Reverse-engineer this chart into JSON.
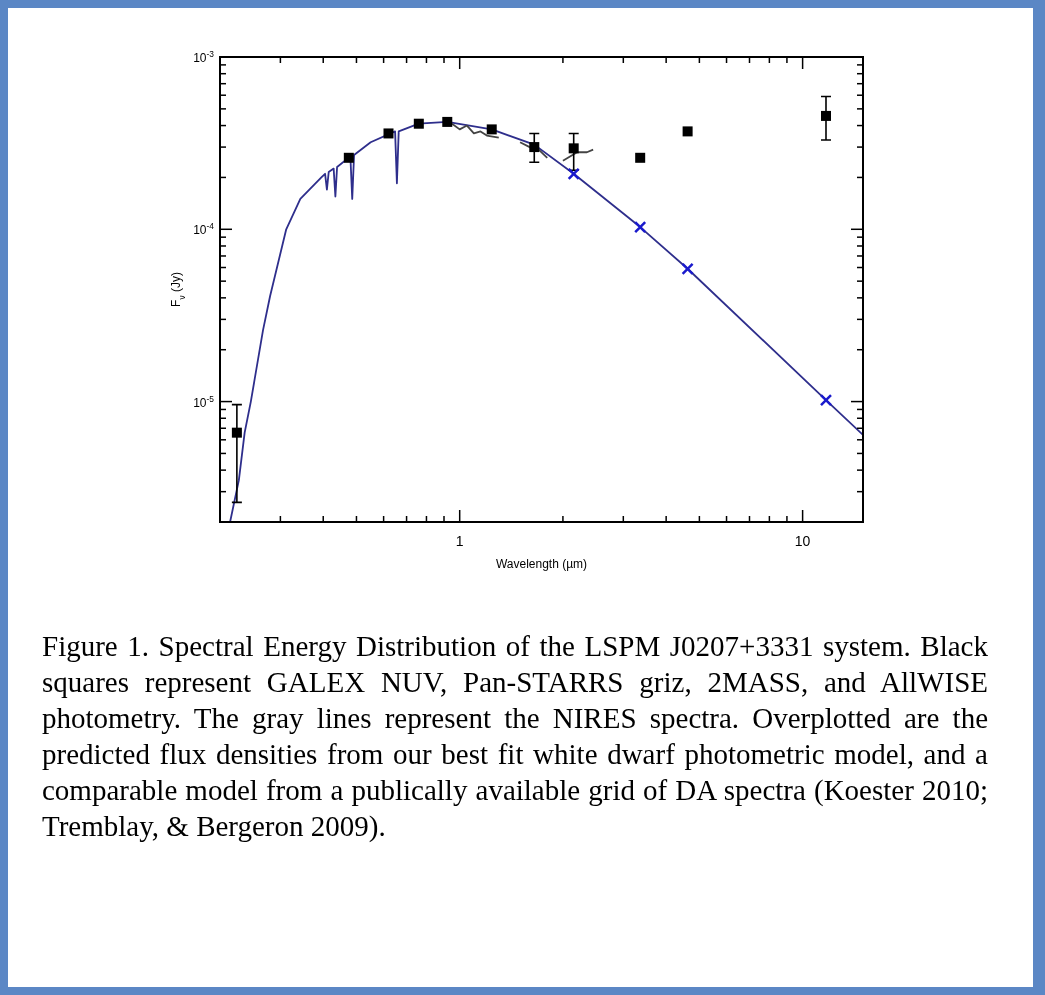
{
  "chart_data": {
    "type": "line",
    "xlabel": "Wavelength (µm)",
    "ylabel": "F$_{ν}$ (Jy)",
    "log": "xy",
    "grid": false,
    "xlim": [
      0.2,
      15
    ],
    "ylim": [
      2e-06,
      0.001
    ],
    "xticks": [
      {
        "value": 0.2,
        "label": null
      },
      {
        "value": 0.3,
        "label": null
      },
      {
        "value": 0.4,
        "label": null
      },
      {
        "value": 0.5,
        "label": null
      },
      {
        "value": 0.6,
        "label": null
      },
      {
        "value": 0.7,
        "label": null
      },
      {
        "value": 0.8,
        "label": null
      },
      {
        "value": 0.9,
        "label": null
      },
      1,
      {
        "value": 2,
        "label": null
      },
      {
        "value": 3,
        "label": null
      },
      {
        "value": 4,
        "label": null
      },
      {
        "value": 5,
        "label": null
      },
      {
        "value": 6,
        "label": null
      },
      {
        "value": 7,
        "label": null
      },
      {
        "value": 8,
        "label": null
      },
      {
        "value": 9,
        "label": null
      },
      10
    ],
    "yticks": [
      {
        "value": 2e-06,
        "label": null
      },
      {
        "value": 3e-06,
        "label": null
      },
      {
        "value": 4e-06,
        "label": null
      },
      {
        "value": 5e-06,
        "label": null
      },
      {
        "value": 6e-06,
        "label": null
      },
      {
        "value": 7e-06,
        "label": null
      },
      {
        "value": 8e-06,
        "label": null
      },
      {
        "value": 9e-06,
        "label": null
      },
      {
        "value": 1e-05,
        "label": "10$^{-5}$"
      },
      {
        "value": 2e-05,
        "label": null
      },
      {
        "value": 3e-05,
        "label": null
      },
      {
        "value": 4e-05,
        "label": null
      },
      {
        "value": 5e-05,
        "label": null
      },
      {
        "value": 6e-05,
        "label": null
      },
      {
        "value": 7e-05,
        "label": null
      },
      {
        "value": 8e-05,
        "label": null
      },
      {
        "value": 9e-05,
        "label": null
      },
      {
        "value": 0.0001,
        "label": "10$^{-4}$"
      },
      {
        "value": 0.0002,
        "label": null
      },
      {
        "value": 0.0003,
        "label": null
      },
      {
        "value": 0.0004,
        "label": null
      },
      {
        "value": 0.0005,
        "label": null
      },
      {
        "value": 0.0006,
        "label": null
      },
      {
        "value": 0.0007,
        "label": null
      },
      {
        "value": 0.0008,
        "label": null
      },
      {
        "value": 0.0009,
        "label": null
      },
      {
        "value": 0.001,
        "label": "10$^{-3}$"
      }
    ],
    "series": [
      {
        "color": "#2e2e8c",
        "line_style": "solid",
        "x": [
          0.214,
          0.227,
          0.236,
          0.246,
          0.267,
          0.28,
          0.312,
          0.343,
          0.395,
          0.405,
          0.41,
          0.415,
          0.429,
          0.434,
          0.439,
          0.48,
          0.486,
          0.492,
          0.55,
          0.648,
          0.656,
          0.664,
          0.76,
          0.92,
          1.24,
          1.65,
          2.15,
          3.36,
          4.62,
          11.7,
          15
        ],
        "values": [
          2e-06,
          3.5e-06,
          6.6e-06,
          1e-05,
          2.6e-05,
          4.1e-05,
          0.0001,
          0.00015,
          0.0002,
          0.00021,
          0.00017,
          0.000215,
          0.000225,
          0.000155,
          0.00023,
          0.000265,
          0.00015,
          0.00027,
          0.00032,
          0.00037,
          0.000185,
          0.00037,
          0.00041,
          0.00042,
          0.00038,
          0.00031,
          0.00021,
          0.000103,
          5.9e-05,
          1.02e-05,
          6.4e-06
        ]
      },
      {
        "color": "#444444",
        "line_style": "solid",
        "x": [
          0.95,
          1.0,
          1.05,
          1.1,
          1.15,
          1.2,
          1.3,
          1.35,
          1.5,
          1.6,
          1.7,
          1.8,
          1.9,
          2.0,
          2.2,
          2.35,
          2.45
        ],
        "values": [
          0.00041,
          0.00038,
          0.0004,
          0.00036,
          0.00037,
          0.00035,
          0.00034,
          null,
          0.00032,
          0.0003,
          0.00029,
          0.00026,
          null,
          0.00025,
          0.00028,
          0.00028,
          0.00029
        ]
      },
      {
        "type": "scatter",
        "color": "#000000",
        "marker": "square",
        "x": [
          0.224,
          0.475,
          0.62,
          0.76,
          0.92,
          1.24,
          1.65,
          2.15,
          3.36,
          4.62,
          11.7
        ],
        "values": [
          6.6e-06,
          0.00026,
          0.00036,
          0.00041,
          0.00042,
          0.00038,
          0.0003,
          0.000295,
          0.00026,
          0.00037,
          0.000455
        ],
        "errors": [
          [
            2.6e-06,
            9.6e-06
          ],
          null,
          null,
          null,
          null,
          null,
          [
            0.000245,
            0.00036
          ],
          [
            0.00022,
            0.00036
          ],
          null,
          null,
          [
            0.00033,
            0.00059
          ]
        ]
      },
      {
        "type": "scatter",
        "color": "#1a1acc",
        "marker": "cross",
        "x": [
          2.15,
          3.36,
          4.62,
          11.7
        ],
        "values": [
          0.00021,
          0.000103,
          5.9e-05,
          1.02e-05
        ]
      }
    ],
    "annotations": [
      "Figure 1. Spectral Energy Distribution of the LSPM J0207+3331 system. Black squares represent GALEX NUV, Pan-STARRS griz, 2MASS, and AllWISE photometry. The gray lines represent the NIRES spectra. Overplotted are the predicted flux densities from our best fit white dwarf photometric model, and a comparable model from a publically available grid of DA spectra (Koester 2010; Tremblay, & Bergeron 2009)."
    ]
  }
}
